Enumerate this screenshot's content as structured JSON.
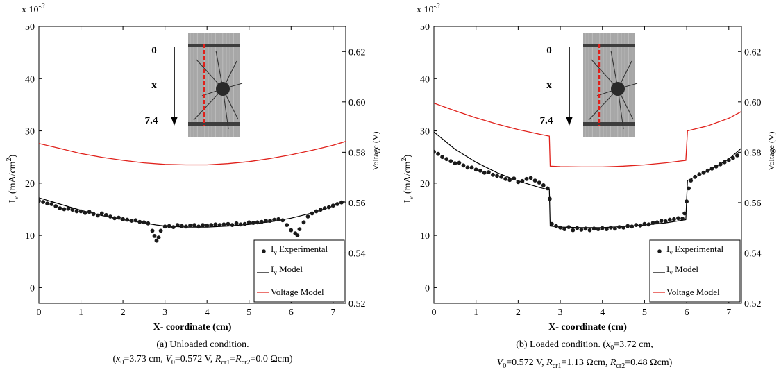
{
  "chart_data": [
    {
      "type": "line",
      "panel": "a",
      "xlabel": "X- coordinate (cm)",
      "ylabel_left": "I_v (mA/cm^2)",
      "ylabel_right": "Voltage (V)",
      "left_axis_multiplier": "x 10^-3",
      "xlim": [
        0,
        7.3
      ],
      "ylim_left": [
        -3,
        50
      ],
      "ylim_right": [
        0.52,
        0.63
      ],
      "xticks": [
        0,
        1,
        2,
        3,
        4,
        5,
        6,
        7
      ],
      "yticks_left": [
        0,
        10,
        20,
        30,
        40,
        50
      ],
      "yticks_right": [
        0.52,
        0.54,
        0.56,
        0.58,
        0.6,
        0.62
      ],
      "legend_placement": "bottom-right",
      "inset": {
        "top_label": "0",
        "middle_label": "x",
        "bottom_label": "7.4"
      },
      "series": [
        {
          "name": "Iv Experimental",
          "marker": "dot",
          "axis": "left",
          "x": [
            0.0,
            0.1,
            0.2,
            0.3,
            0.4,
            0.5,
            0.6,
            0.7,
            0.8,
            0.9,
            1.0,
            1.1,
            1.2,
            1.3,
            1.4,
            1.5,
            1.6,
            1.7,
            1.8,
            1.9,
            2.0,
            2.1,
            2.2,
            2.3,
            2.4,
            2.5,
            2.6,
            2.7,
            2.75,
            2.8,
            2.85,
            2.9,
            3.0,
            3.1,
            3.2,
            3.3,
            3.4,
            3.5,
            3.6,
            3.7,
            3.8,
            3.9,
            4.0,
            4.1,
            4.2,
            4.3,
            4.4,
            4.5,
            4.6,
            4.7,
            4.8,
            4.9,
            5.0,
            5.1,
            5.2,
            5.3,
            5.4,
            5.5,
            5.6,
            5.7,
            5.8,
            5.9,
            6.0,
            6.1,
            6.15,
            6.2,
            6.3,
            6.4,
            6.5,
            6.6,
            6.7,
            6.8,
            6.9,
            7.0,
            7.1,
            7.2
          ],
          "y": [
            16.6,
            16.4,
            16.1,
            16.0,
            15.6,
            15.2,
            15.0,
            15.1,
            14.9,
            14.6,
            14.6,
            14.3,
            14.5,
            14.1,
            13.8,
            14.2,
            13.9,
            13.6,
            13.3,
            13.4,
            13.1,
            13.0,
            12.8,
            12.9,
            12.6,
            12.5,
            12.3,
            10.9,
            9.9,
            9.0,
            9.6,
            10.9,
            11.7,
            11.8,
            11.6,
            12.0,
            11.8,
            11.7,
            11.9,
            12.0,
            11.7,
            12.0,
            11.9,
            12.0,
            12.1,
            12.0,
            12.1,
            12.2,
            12.0,
            12.3,
            12.1,
            12.2,
            12.5,
            12.4,
            12.5,
            12.6,
            12.8,
            12.8,
            13.0,
            13.1,
            12.9,
            12.0,
            11.0,
            10.4,
            10.0,
            11.2,
            12.5,
            13.6,
            14.2,
            14.6,
            14.9,
            15.2,
            15.4,
            15.7,
            16.0,
            16.3
          ]
        },
        {
          "name": "Iv Model",
          "axis": "left",
          "x": [
            0.0,
            0.5,
            1.0,
            1.5,
            2.0,
            2.5,
            2.8,
            3.0,
            3.5,
            4.0,
            4.5,
            5.0,
            5.5,
            6.0,
            6.5,
            7.0,
            7.3
          ],
          "y": [
            17.2,
            16.0,
            14.8,
            13.8,
            13.0,
            12.4,
            12.0,
            11.8,
            11.6,
            11.6,
            11.8,
            12.1,
            12.6,
            13.3,
            14.3,
            15.6,
            16.6
          ]
        },
        {
          "name": "Voltage Model",
          "axis": "right",
          "color": "#e0201a",
          "x": [
            0.0,
            0.5,
            1.0,
            1.5,
            2.0,
            2.5,
            3.0,
            3.5,
            4.0,
            4.5,
            5.0,
            5.5,
            6.0,
            6.5,
            7.0,
            7.3
          ],
          "y": [
            0.5835,
            0.5815,
            0.5795,
            0.578,
            0.5768,
            0.5758,
            0.5752,
            0.575,
            0.575,
            0.5755,
            0.5763,
            0.5775,
            0.579,
            0.5808,
            0.5828,
            0.5843
          ]
        }
      ]
    },
    {
      "type": "line",
      "panel": "b",
      "xlabel": "X- coordinate (cm)",
      "ylabel_left": "I_v (mA/cm^2)",
      "ylabel_right": "Voltage (V)",
      "left_axis_multiplier": "x 10^-3",
      "xlim": [
        0,
        7.3
      ],
      "ylim_left": [
        -3,
        50
      ],
      "ylim_right": [
        0.52,
        0.63
      ],
      "xticks": [
        0,
        1,
        2,
        3,
        4,
        5,
        6,
        7
      ],
      "yticks_left": [
        0,
        10,
        20,
        30,
        40,
        50
      ],
      "yticks_right": [
        0.52,
        0.54,
        0.56,
        0.58,
        0.6,
        0.62
      ],
      "legend_placement": "bottom-right",
      "inset": {
        "top_label": "0",
        "middle_label": "x",
        "bottom_label": "7.4"
      },
      "series": [
        {
          "name": "Iv Experimental",
          "marker": "dot",
          "axis": "left",
          "x": [
            0.0,
            0.1,
            0.2,
            0.3,
            0.4,
            0.5,
            0.6,
            0.7,
            0.8,
            0.9,
            1.0,
            1.1,
            1.2,
            1.3,
            1.4,
            1.5,
            1.6,
            1.7,
            1.8,
            1.9,
            2.0,
            2.1,
            2.2,
            2.3,
            2.4,
            2.5,
            2.6,
            2.7,
            2.75,
            2.8,
            2.9,
            3.0,
            3.1,
            3.2,
            3.3,
            3.4,
            3.5,
            3.6,
            3.7,
            3.8,
            3.9,
            4.0,
            4.1,
            4.2,
            4.3,
            4.4,
            4.5,
            4.6,
            4.7,
            4.8,
            4.9,
            5.0,
            5.1,
            5.2,
            5.3,
            5.4,
            5.5,
            5.6,
            5.7,
            5.8,
            5.9,
            5.95,
            6.0,
            6.05,
            6.1,
            6.2,
            6.3,
            6.4,
            6.5,
            6.6,
            6.7,
            6.8,
            6.9,
            7.0,
            7.1,
            7.2
          ],
          "y": [
            26.0,
            25.6,
            25.0,
            24.6,
            24.2,
            23.8,
            23.9,
            23.4,
            23.0,
            23.0,
            22.6,
            22.4,
            22.0,
            22.1,
            21.6,
            21.4,
            21.2,
            20.8,
            20.6,
            20.9,
            20.2,
            20.4,
            20.8,
            21.0,
            20.5,
            20.1,
            19.6,
            19.0,
            17.0,
            12.2,
            11.8,
            11.5,
            11.2,
            11.6,
            11.0,
            11.4,
            11.1,
            11.3,
            11.0,
            11.3,
            11.2,
            11.4,
            11.2,
            11.5,
            11.3,
            11.6,
            11.5,
            11.8,
            11.7,
            12.0,
            11.9,
            12.2,
            12.1,
            12.4,
            12.5,
            12.8,
            12.7,
            13.0,
            13.1,
            13.3,
            13.2,
            14.2,
            16.5,
            19.0,
            20.5,
            21.2,
            21.7,
            22.0,
            22.4,
            22.8,
            23.2,
            23.6,
            24.0,
            24.4,
            24.8,
            25.3
          ]
        },
        {
          "name": "Iv Model",
          "axis": "left",
          "x": [
            0.0,
            0.5,
            1.0,
            1.5,
            2.0,
            2.5,
            2.74,
            2.76,
            3.0,
            3.5,
            4.0,
            4.5,
            5.0,
            5.5,
            5.98,
            6.0,
            6.02,
            6.5,
            7.0,
            7.3
          ],
          "y": [
            29.8,
            26.5,
            24.0,
            22.0,
            20.4,
            19.2,
            18.7,
            11.8,
            11.6,
            11.5,
            11.5,
            11.7,
            12.0,
            12.4,
            13.0,
            17.0,
            20.5,
            22.3,
            24.6,
            26.7
          ]
        },
        {
          "name": "Voltage Model",
          "axis": "right",
          "color": "#e0201a",
          "x": [
            0.0,
            0.5,
            1.0,
            1.5,
            2.0,
            2.5,
            2.74,
            2.76,
            3.0,
            3.5,
            4.0,
            4.5,
            5.0,
            5.5,
            5.98,
            6.02,
            6.5,
            7.0,
            7.3
          ],
          "y": [
            0.5995,
            0.5965,
            0.5937,
            0.5912,
            0.589,
            0.5872,
            0.5864,
            0.5745,
            0.5743,
            0.5742,
            0.5742,
            0.5745,
            0.575,
            0.5758,
            0.5768,
            0.5885,
            0.5905,
            0.5935,
            0.5962
          ]
        }
      ]
    }
  ],
  "legend": {
    "exp_main": "I",
    "exp_sub": "v",
    "exp_rest": " Experimental",
    "model_main": "I",
    "model_sub": "v",
    "model_rest": " Model",
    "volt": "Voltage Model"
  },
  "axis_text": {
    "multiplier_base": "x 10",
    "multiplier_exp": "-3",
    "xlabel": "X- coordinate (cm)",
    "ylabel_right": "Voltage (V)",
    "ylabel_left_main": "I",
    "ylabel_left_sub": "v",
    "ylabel_left_mid": " (mA/cm",
    "ylabel_left_sup": "2",
    "ylabel_left_end": ")"
  },
  "inset_text": {
    "top": "0",
    "mid": "x",
    "bottom": "7.4"
  },
  "captions": {
    "a_line1": "(a) Unloaded condition.",
    "a_l2_open": "(",
    "a_l2_x0val": "=3.73 cm, ",
    "a_l2_v0val": "=0.572 V, ",
    "a_l2_eq": "=",
    "a_l2_val": "=0.0 Ωcm)",
    "b_line1_pre": "(b) Loaded condition. (",
    "b_line1_x0val": "=3.72 cm,",
    "b_l2_v0val": "=0.572 V, ",
    "b_l2_r1val": "=1.13 Ωcm, ",
    "b_l2_r2val": "=0.48 Ωcm)",
    "sym_x": "x",
    "sym_V": "V",
    "sym_R": "R",
    "sub_0": "0",
    "sub_cr1": "cr1",
    "sub_cr2": "cr2"
  }
}
